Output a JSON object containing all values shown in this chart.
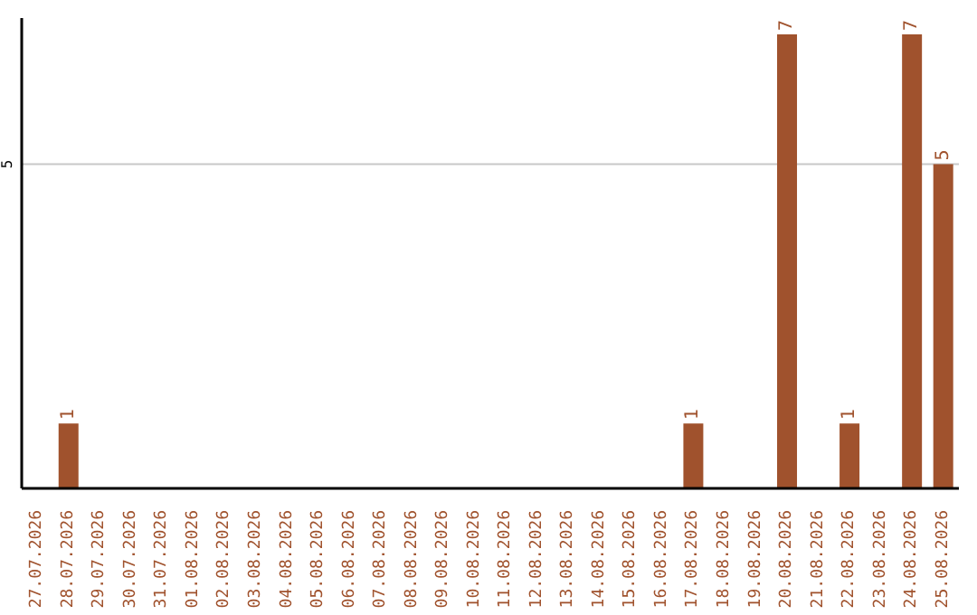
{
  "chart_data": {
    "type": "bar",
    "categories": [
      "27.07.2026",
      "28.07.2026",
      "29.07.2026",
      "30.07.2026",
      "31.07.2026",
      "01.08.2026",
      "02.08.2026",
      "03.08.2026",
      "04.08.2026",
      "05.08.2026",
      "06.08.2026",
      "07.08.2026",
      "08.08.2026",
      "09.08.2026",
      "10.08.2026",
      "11.08.2026",
      "12.08.2026",
      "13.08.2026",
      "14.08.2026",
      "15.08.2026",
      "16.08.2026",
      "17.08.2026",
      "18.08.2026",
      "19.08.2026",
      "20.08.2026",
      "21.08.2026",
      "22.08.2026",
      "23.08.2026",
      "24.08.2026",
      "25.08.2026"
    ],
    "values": [
      0,
      1,
      0,
      0,
      0,
      0,
      0,
      0,
      0,
      0,
      0,
      0,
      0,
      0,
      0,
      0,
      0,
      0,
      0,
      0,
      0,
      1,
      0,
      0,
      7,
      0,
      1,
      0,
      7,
      5
    ],
    "value_labels": [
      null,
      "1",
      null,
      null,
      null,
      null,
      null,
      null,
      null,
      null,
      null,
      null,
      null,
      null,
      null,
      null,
      null,
      null,
      null,
      null,
      null,
      "1",
      null,
      null,
      "7",
      null,
      "1",
      null,
      "7",
      "5"
    ],
    "color": "#a0522d",
    "ylim": [
      0,
      7.25
    ],
    "yticks": [
      5
    ],
    "grid": "y",
    "legend": false
  }
}
